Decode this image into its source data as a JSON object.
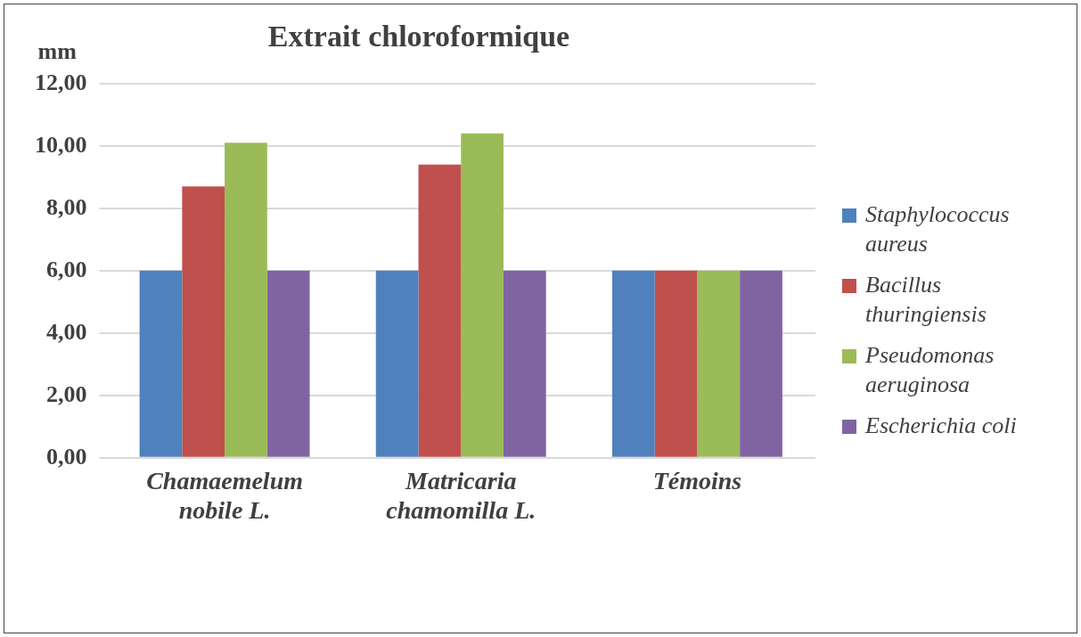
{
  "chart_data": {
    "type": "bar",
    "title": "Extrait chloroformique",
    "ylabel": "mm",
    "categories": [
      "Chamaemelum nobile L.",
      "Matricaria chamomilla L.",
      "Témoins"
    ],
    "series": [
      {
        "name": "Staphylococcus aureus",
        "color": "#4f81bd",
        "values": [
          6,
          6,
          6
        ]
      },
      {
        "name": "Bacillus thuringiensis",
        "color": "#c0504d",
        "values": [
          8.7,
          9.4,
          6
        ]
      },
      {
        "name": "Pseudomonas aeruginosa",
        "color": "#9bbb59",
        "values": [
          10.1,
          10.4,
          6
        ]
      },
      {
        "name": "Escherichia coli",
        "color": "#8064a2",
        "values": [
          6,
          6,
          6
        ]
      }
    ],
    "ylim": [
      0,
      12
    ],
    "yticks": [
      {
        "value": 0,
        "label": "0,00"
      },
      {
        "value": 2,
        "label": "2,00"
      },
      {
        "value": 4,
        "label": "4,00"
      },
      {
        "value": 6,
        "label": "6,00"
      },
      {
        "value": 8,
        "label": "8,00"
      },
      {
        "value": 10,
        "label": "10,00"
      },
      {
        "value": 12,
        "label": "12,00"
      }
    ],
    "grid": "y",
    "legend": "right"
  }
}
